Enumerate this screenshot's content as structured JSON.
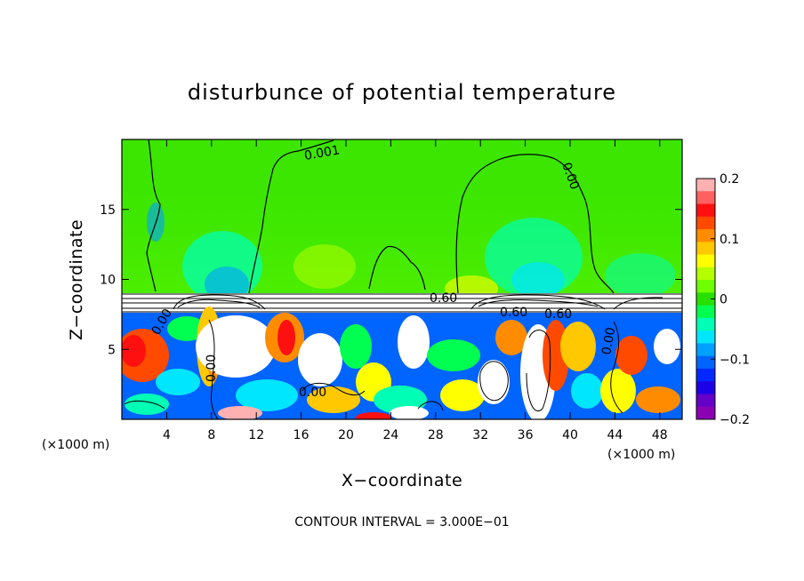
{
  "chart_data": {
    "type": "heatmap",
    "title": "disturbunce of potential temperature",
    "xlabel": "X−coordinate",
    "ylabel": "Z−coordinate",
    "x_unit": "(×1000 m)",
    "x_unit_right": "(×1000 m)",
    "xlim": [
      0,
      50
    ],
    "ylim": [
      0,
      20
    ],
    "x_ticks": [
      4,
      8,
      12,
      16,
      20,
      24,
      28,
      32,
      36,
      40,
      44,
      48
    ],
    "y_ticks": [
      5,
      10,
      15
    ],
    "colorbar": {
      "range": [
        -0.2,
        0.2
      ],
      "tick_values": [
        0.2,
        0.1,
        0,
        -0.1,
        -0.2
      ],
      "tick_labels": [
        "0.2",
        "0.1",
        "0",
        "−0.1",
        "−0.2"
      ],
      "colors": [
        "#ffb0b0",
        "#ff6060",
        "#ff1010",
        "#ff4a00",
        "#ff8c00",
        "#ffc800",
        "#ffff00",
        "#b4ff00",
        "#6eff00",
        "#28e000",
        "#00ff50",
        "#00ffb4",
        "#00e6ff",
        "#00a0ff",
        "#0064ff",
        "#0028ff",
        "#1e00e6",
        "#6400c8",
        "#8c00b4"
      ]
    },
    "contour_labels": [
      "0.001",
      "0.00",
      "0.60",
      "0.60",
      "0.60",
      "0.00",
      "0.00",
      "0.00",
      "0.00",
      "0.00"
    ],
    "footer": "CONTOUR INTERVAL = 3.000E−01"
  }
}
